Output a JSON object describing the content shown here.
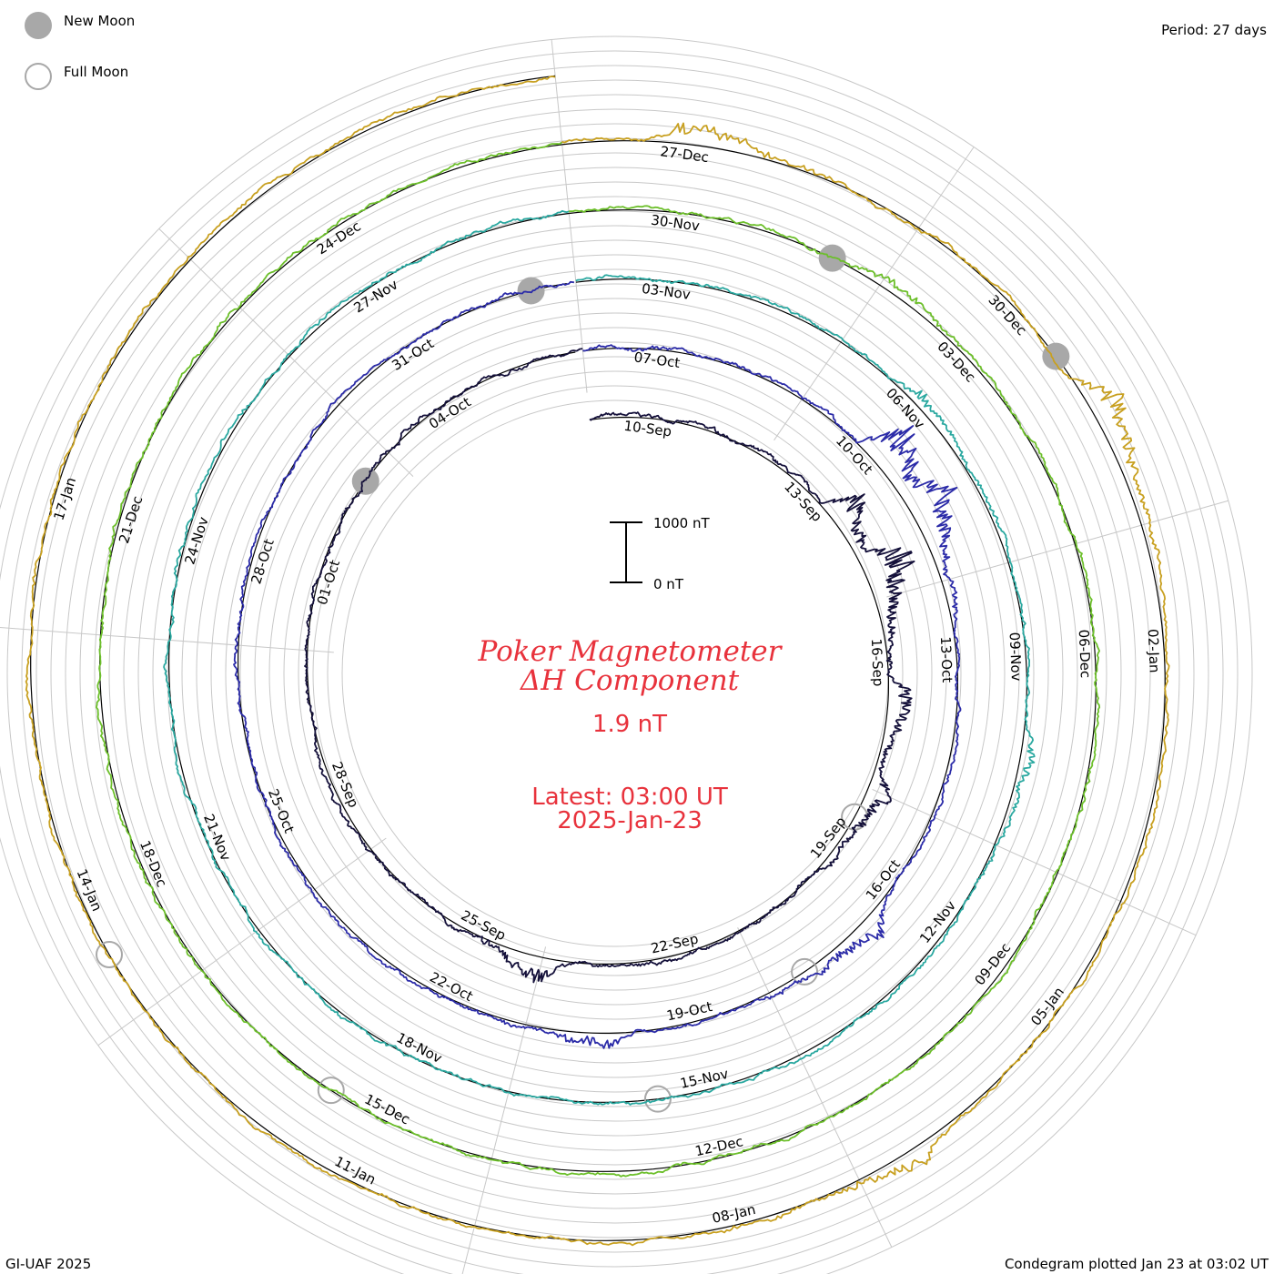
{
  "legend": {
    "new_moon_label": "New Moon",
    "full_moon_label": "Full Moon"
  },
  "period_label": "Period: 27 days",
  "footer": {
    "left": "GI-UAF 2025",
    "right": "Condegram plotted Jan 23 at 03:02 UT"
  },
  "colors": {
    "title": "#e8323c",
    "ring": "#000000",
    "grid": "#c8c8c8",
    "moon_new": "#a8a8a8",
    "moon_full": "#a8a8a8"
  },
  "chart_data": {
    "type": "line",
    "title": "Poker Magnetometer",
    "subtitle": "ΔH Component",
    "current_value": "1.9 nT",
    "latest_time": "Latest: 03:00 UT",
    "latest_date": "2025-Jan-23",
    "scale_bar": {
      "top_label": "1000 nT",
      "bottom_label": "0 nT",
      "top_value": 1000,
      "bottom_value": 0
    },
    "period_days": 27,
    "start": "2024-Sep-09",
    "end": "2025-Jan-23 03:00",
    "cycles": [
      {
        "color": "#14103a",
        "labels": [
          "10-Sep",
          "13-Sep",
          "16-Sep",
          "19-Sep",
          "22-Sep",
          "25-Sep",
          "28-Sep",
          "01-Oct",
          "04-Oct"
        ]
      },
      {
        "color": "#2b2ba8",
        "labels": [
          "07-Oct",
          "10-Oct",
          "13-Oct",
          "16-Oct",
          "19-Oct",
          "22-Oct",
          "25-Oct",
          "28-Oct",
          "31-Oct"
        ]
      },
      {
        "color": "#2aa8a0",
        "labels": [
          "03-Nov",
          "06-Nov",
          "09-Nov",
          "12-Nov",
          "15-Nov",
          "18-Nov",
          "21-Nov",
          "24-Nov",
          "27-Nov"
        ]
      },
      {
        "color": "#6cbf2a",
        "labels": [
          "30-Nov",
          "03-Dec",
          "06-Dec",
          "09-Dec",
          "12-Dec",
          "15-Dec",
          "18-Dec",
          "21-Dec",
          "24-Dec"
        ]
      },
      {
        "color": "#c8a020",
        "labels": [
          "27-Dec",
          "30-Dec",
          "02-Jan",
          "05-Jan",
          "08-Jan",
          "11-Jan",
          "14-Jan",
          "17-Jan"
        ]
      }
    ],
    "new_moons": [
      "2024-Oct-02",
      "2024-Nov-01",
      "2024-Dec-01",
      "2024-Dec-30"
    ],
    "full_moons": [
      "2024-Sep-18",
      "2024-Oct-17",
      "2024-Nov-15",
      "2024-Dec-15",
      "2025-Jan-13"
    ],
    "disturbances": [
      {
        "day": 4.5,
        "peak_nT": 700
      },
      {
        "day": 5.5,
        "peak_nT": 900
      },
      {
        "day": 7.5,
        "peak_nT": 500
      },
      {
        "day": 9.0,
        "peak_nT": 400
      },
      {
        "day": 15.0,
        "peak_nT": 450
      },
      {
        "day": 31.2,
        "peak_nT": 950
      },
      {
        "day": 32.0,
        "peak_nT": 700
      },
      {
        "day": 37.5,
        "peak_nT": 400
      },
      {
        "day": 41.0,
        "peak_nT": 300
      },
      {
        "day": 58.0,
        "peak_nT": 250
      },
      {
        "day": 62.0,
        "peak_nT": 250
      },
      {
        "day": 84.0,
        "peak_nT": 200
      },
      {
        "day": 109.0,
        "peak_nT": 400
      },
      {
        "day": 113.0,
        "peak_nT": 650
      },
      {
        "day": 119.5,
        "peak_nT": 300
      }
    ]
  }
}
